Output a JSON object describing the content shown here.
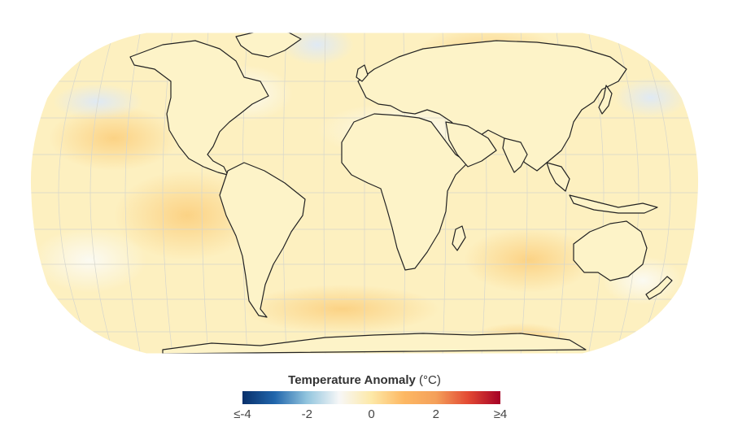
{
  "legend": {
    "title": "Temperature Anomaly",
    "unit": "(°C)",
    "ticks": [
      "≤-4",
      "-2",
      "0",
      "2",
      "≥4"
    ],
    "tick_values": [
      -4,
      -2,
      0,
      2,
      4
    ],
    "colors": [
      "#08306b",
      "#2166ac",
      "#92c5de",
      "#f7f7f7",
      "#fde9a8",
      "#fdb863",
      "#f4a05a",
      "#e34a33",
      "#a50026"
    ]
  },
  "map": {
    "projection": "robinson",
    "ocean_fill": "#fdf0c0",
    "land_fill": "#fdf3c8",
    "coastline_color": "#222222",
    "graticule_color": "#d6d6cc"
  }
}
